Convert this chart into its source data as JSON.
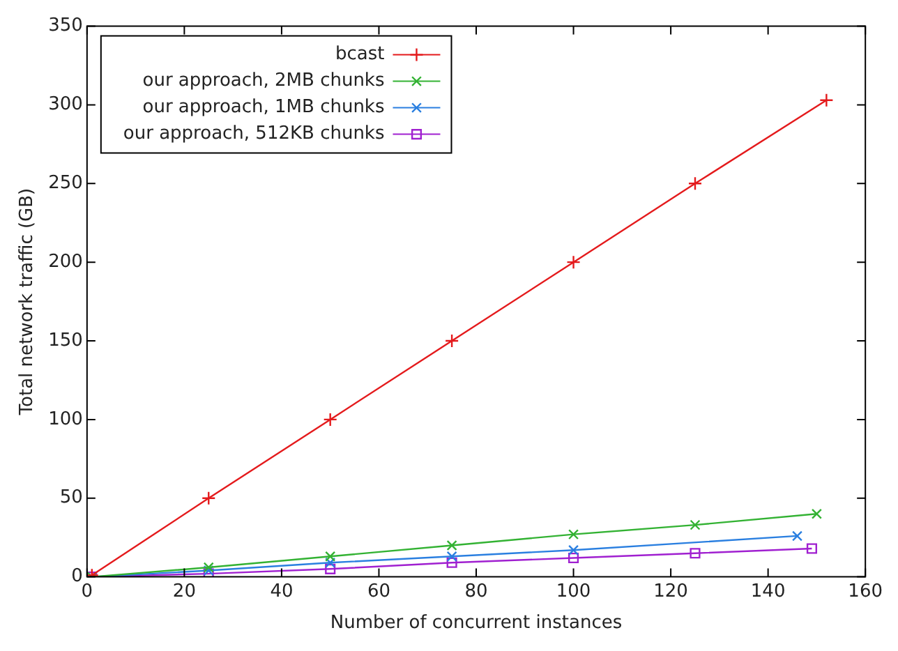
{
  "chart_data": {
    "type": "line",
    "xlabel": "Number of concurrent instances",
    "ylabel": "Total network traffic (GB)",
    "xlim": [
      0,
      160
    ],
    "xticks": [
      0,
      20,
      40,
      60,
      80,
      100,
      120,
      140,
      160
    ],
    "ylim": [
      0,
      350
    ],
    "yticks": [
      0,
      50,
      100,
      150,
      200,
      250,
      300,
      350
    ],
    "grid": false,
    "legend": "top left",
    "line_style": "solid",
    "series": [
      {
        "name": "bcast",
        "color": "#e41a1c",
        "marker": "plus",
        "x": [
          1,
          25,
          50,
          75,
          100,
          125,
          152
        ],
        "values": [
          1,
          50,
          100,
          150,
          200,
          250,
          303
        ]
      },
      {
        "name": "our approach, 2MB chunks",
        "color": "#33b233",
        "marker": "cross",
        "x": [
          1,
          25,
          50,
          75,
          100,
          125,
          150
        ],
        "values": [
          0,
          6,
          13,
          20,
          27,
          33,
          40
        ]
      },
      {
        "name": "our approach, 1MB chunks",
        "color": "#2a7fe0",
        "marker": "cross",
        "x": [
          1,
          25,
          50,
          75,
          100,
          146
        ],
        "values": [
          0,
          4,
          9,
          13,
          17,
          26
        ]
      },
      {
        "name": "our approach, 512KB chunks",
        "color": "#a020d0",
        "marker": "square",
        "x": [
          1,
          25,
          50,
          75,
          100,
          125,
          149
        ],
        "values": [
          0,
          2,
          5,
          9,
          12,
          15,
          18
        ]
      }
    ]
  }
}
